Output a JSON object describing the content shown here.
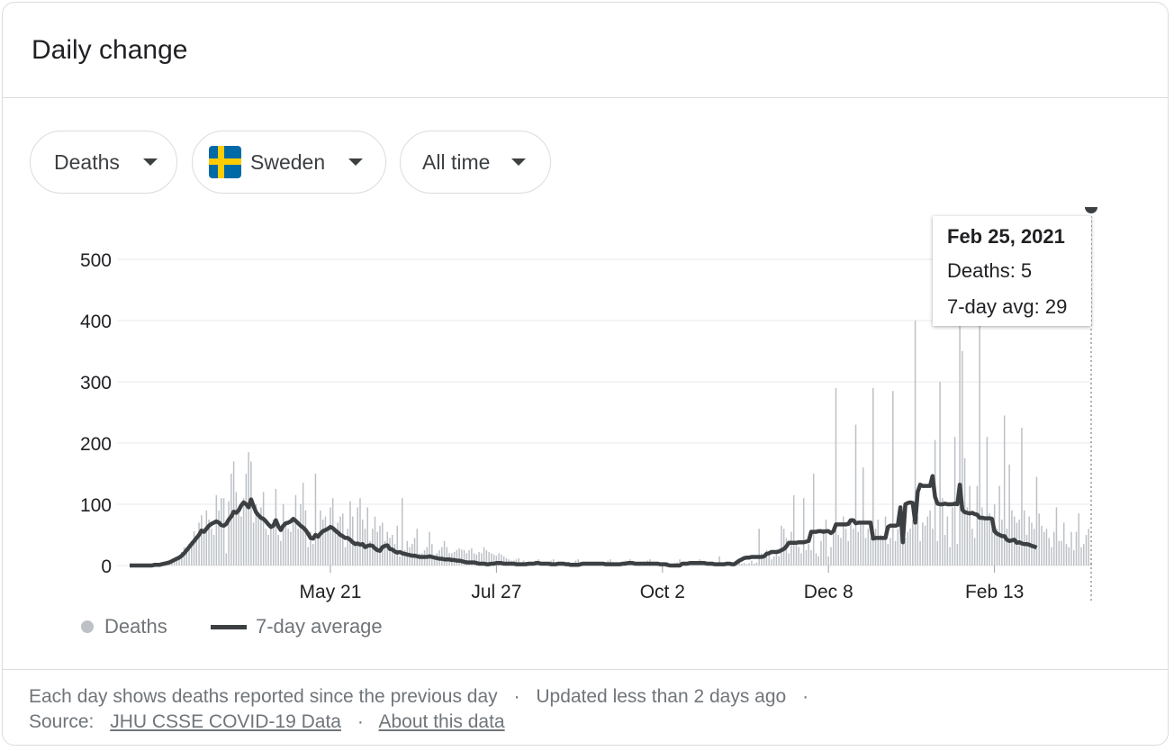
{
  "header": {
    "title": "Daily change"
  },
  "filters": {
    "metric": "Deaths",
    "country": "Sweden",
    "range": "All time"
  },
  "tooltip": {
    "date": "Feb 25, 2021",
    "deaths_label": "Deaths: 5",
    "avg_label": "7-day avg: 29"
  },
  "legend": {
    "bars": "Deaths",
    "line": "7-day average"
  },
  "footer": {
    "note": "Each day shows deaths reported since the previous day",
    "separator": "·",
    "updated": "Updated less than 2 days ago",
    "source_label": "Source:",
    "source_link": "JHU CSSE COVID-19 Data",
    "about_link": "About this data"
  },
  "colors": {
    "bars": "#bdc1c6",
    "line": "#3c4043",
    "grid": "#e8eaed",
    "chip_border": "#dadce0"
  },
  "icons": {
    "dropdown": "caret-down-icon",
    "flag": "sweden-flag-icon"
  },
  "chart_data": {
    "type": "bar",
    "title": "Daily change",
    "ylim": [
      0,
      500
    ],
    "yticks": [
      0,
      100,
      200,
      300,
      400,
      500
    ],
    "xtick_labels": [
      "May 21",
      "Jul 27",
      "Oct 2",
      "Dec 8",
      "Feb 13"
    ],
    "xtick_day_index": [
      81,
      148,
      215,
      282,
      349
    ],
    "grid": true,
    "legend_position": "bottom-left",
    "series": [
      {
        "name": "Deaths",
        "type": "bar",
        "values": [
          0,
          0,
          0,
          0,
          0,
          0,
          0,
          0,
          0,
          0,
          0,
          0,
          0,
          1,
          2,
          4,
          5,
          8,
          9,
          15,
          10,
          22,
          30,
          25,
          35,
          40,
          56,
          40,
          70,
          82,
          60,
          90,
          75,
          60,
          50,
          115,
          90,
          110,
          110,
          20,
          105,
          150,
          170,
          120,
          90,
          80,
          110,
          150,
          185,
          170,
          70,
          100,
          80,
          95,
          120,
          60,
          50,
          60,
          75,
          125,
          50,
          40,
          100,
          70,
          60,
          55,
          80,
          115,
          60,
          100,
          135,
          90,
          30,
          55,
          35,
          150,
          45,
          90,
          75,
          80,
          60,
          95,
          110,
          55,
          70,
          80,
          85,
          30,
          60,
          105,
          80,
          40,
          95,
          110,
          75,
          60,
          95,
          40,
          60,
          80,
          55,
          65,
          70,
          40,
          55,
          45,
          50,
          35,
          65,
          15,
          110,
          25,
          40,
          30,
          35,
          45,
          60,
          20,
          20,
          25,
          30,
          55,
          35,
          15,
          20,
          25,
          30,
          40,
          30,
          20,
          20,
          22,
          25,
          28,
          26,
          25,
          20,
          25,
          28,
          20,
          18,
          22,
          20,
          30,
          25,
          22,
          20,
          18,
          16,
          20,
          18,
          15,
          12,
          10,
          8,
          8,
          10,
          12,
          5,
          8,
          6,
          4,
          5,
          6,
          8,
          10,
          3,
          5,
          4,
          6,
          8,
          10,
          5,
          4,
          6,
          3,
          5,
          6,
          4,
          5,
          8,
          10,
          6,
          5,
          3,
          2,
          3,
          4,
          3,
          5,
          4,
          3,
          6,
          8,
          10,
          5,
          4,
          2,
          1,
          5,
          8,
          6,
          10,
          4,
          3,
          5,
          2,
          4,
          6,
          8,
          10,
          6,
          4,
          3,
          5,
          4,
          3,
          6,
          3,
          2,
          4,
          5,
          10,
          3,
          4,
          2,
          3,
          2,
          4,
          5,
          10,
          8,
          4,
          3,
          6,
          5,
          3,
          2,
          15,
          4,
          2,
          3,
          4,
          3,
          5,
          2,
          6,
          3,
          4,
          2,
          4,
          8,
          3,
          5,
          60,
          20,
          15,
          25,
          20,
          10,
          15,
          20,
          15,
          65,
          60,
          45,
          20,
          55,
          115,
          40,
          30,
          20,
          110,
          25,
          35,
          25,
          150,
          20,
          15,
          40,
          60,
          75,
          15,
          30,
          60,
          290,
          50,
          45,
          80,
          60,
          40,
          75,
          60,
          230,
          55,
          70,
          160,
          45,
          60,
          45,
          290,
          60,
          75,
          50,
          45,
          80,
          35,
          45,
          285,
          40,
          60,
          80,
          60,
          45,
          55,
          60,
          75,
          400,
          80,
          40,
          70,
          65,
          80,
          90,
          60,
          205,
          40,
          300,
          110,
          50,
          80,
          30,
          95,
          210,
          35,
          420,
          350,
          175,
          95,
          130,
          60,
          45,
          130,
          420,
          95,
          80,
          210,
          85,
          80,
          100,
          60,
          130,
          75,
          245,
          60,
          165,
          90,
          80,
          70,
          75,
          225,
          90,
          50,
          80,
          70,
          60,
          145,
          85,
          65,
          55,
          60,
          45,
          30,
          55,
          95,
          40,
          40,
          70,
          35,
          30,
          55,
          25,
          55,
          85,
          30,
          35,
          50,
          60,
          5
        ]
      },
      {
        "name": "7-day average",
        "type": "line",
        "values": [
          0,
          0,
          0,
          0,
          0,
          0,
          0,
          0,
          0,
          0,
          1,
          1,
          1,
          2,
          3,
          4,
          5,
          7,
          9,
          11,
          13,
          16,
          20,
          25,
          30,
          35,
          40,
          45,
          50,
          57,
          55,
          60,
          65,
          68,
          70,
          72,
          70,
          66,
          65,
          68,
          75,
          80,
          88,
          86,
          90,
          98,
          103,
          100,
          95,
          108,
          97,
          87,
          82,
          78,
          76,
          72,
          67,
          63,
          65,
          74,
          64,
          58,
          65,
          69,
          70,
          72,
          76,
          73,
          69,
          65,
          62,
          58,
          52,
          45,
          44,
          50,
          47,
          52,
          56,
          58,
          60,
          63,
          61,
          57,
          54,
          50,
          48,
          45,
          45,
          42,
          38,
          35,
          36,
          34,
          35,
          30,
          32,
          33,
          32,
          28,
          25,
          24,
          30,
          32,
          33,
          27,
          26,
          23,
          21,
          22,
          20,
          19,
          18,
          17,
          16,
          16,
          15,
          14,
          14,
          14,
          14,
          15,
          14,
          13,
          12,
          11,
          11,
          10,
          10,
          10,
          9,
          9,
          8,
          8,
          7,
          6,
          5,
          5,
          5,
          5,
          4,
          3,
          3,
          3,
          2,
          2,
          3,
          3,
          4,
          4,
          4,
          3,
          3,
          3,
          3,
          3,
          2,
          2,
          2,
          2,
          2,
          3,
          3,
          3,
          4,
          4,
          3,
          3,
          3,
          3,
          2,
          2,
          2,
          3,
          3,
          3,
          2,
          2,
          1,
          1,
          1,
          1,
          2,
          3,
          3,
          3,
          3,
          3,
          3,
          3,
          3,
          3,
          2,
          2,
          2,
          2,
          2,
          2,
          2,
          3,
          3,
          4,
          4,
          4,
          3,
          3,
          3,
          3,
          3,
          3,
          3,
          3,
          3,
          3,
          2,
          2,
          2,
          1,
          0,
          0,
          0,
          0,
          0,
          3,
          3,
          3,
          4,
          4,
          4,
          4,
          4,
          4,
          4,
          3,
          3,
          3,
          2,
          2,
          2,
          2,
          2,
          3,
          3,
          2,
          2,
          5,
          8,
          10,
          12,
          13,
          13,
          14,
          14,
          14,
          14,
          14,
          15,
          19,
          20,
          22,
          22,
          22,
          23,
          25,
          27,
          31,
          37,
          37,
          37,
          37,
          38,
          38,
          38,
          39,
          40,
          55,
          55,
          55,
          56,
          56,
          55,
          56,
          56,
          53,
          56,
          67,
          67,
          67,
          67,
          67,
          68,
          74,
          74,
          69,
          70,
          70,
          70,
          70,
          70,
          70,
          44,
          45,
          45,
          45,
          45,
          45,
          63,
          65,
          65,
          65,
          66,
          95,
          38,
          100,
          102,
          103,
          102,
          70,
          120,
          132,
          130,
          130,
          130,
          130,
          146,
          112,
          101,
          100,
          100,
          101,
          100,
          100,
          100,
          101,
          100,
          132,
          91,
          87,
          86,
          85,
          86,
          84,
          83,
          78,
          78,
          77,
          77,
          77,
          76,
          56,
          52,
          50,
          48,
          48,
          42,
          40,
          41,
          42,
          37,
          38,
          36,
          35,
          35,
          34,
          32,
          31,
          29
        ]
      }
    ]
  }
}
